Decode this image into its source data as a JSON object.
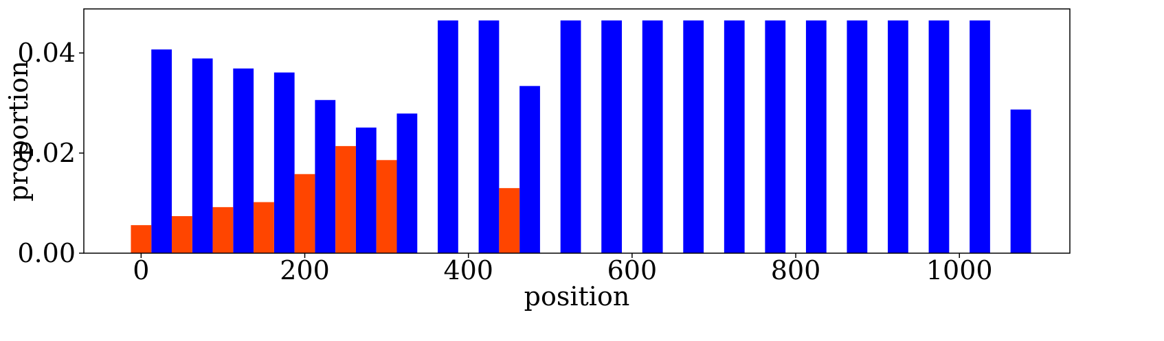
{
  "chart_data": {
    "type": "bar",
    "xlabel": "position",
    "ylabel": "proportion",
    "xlim": [
      -70,
      1135
    ],
    "ylim": [
      0,
      0.0488
    ],
    "bar_width": 25,
    "x_ticks": [
      0,
      200,
      400,
      600,
      800,
      1000
    ],
    "y_ticks": [
      0.0,
      0.02,
      0.04
    ],
    "x_tick_labels": [
      "0",
      "200",
      "400",
      "600",
      "800",
      "1000"
    ],
    "y_tick_labels": [
      "0.00",
      "0.02",
      "0.04"
    ],
    "grid": false,
    "legend": "none",
    "series": [
      {
        "color": "#0000ff",
        "x": [
          25,
          75,
          125,
          175,
          225,
          275,
          325,
          375,
          425,
          475,
          525,
          575,
          625,
          675,
          725,
          775,
          825,
          875,
          925,
          975,
          1025,
          1075
        ],
        "values": [
          0.0407,
          0.0389,
          0.0369,
          0.0361,
          0.0306,
          0.0251,
          0.0279,
          0.0465,
          0.0465,
          0.0334,
          0.0465,
          0.0465,
          0.0465,
          0.0465,
          0.0465,
          0.0465,
          0.0465,
          0.0465,
          0.0465,
          0.0465,
          0.0465,
          0.0287
        ]
      },
      {
        "color": "#ff4500",
        "x": [
          0,
          50,
          100,
          150,
          200,
          250,
          300,
          450
        ],
        "values": [
          0.0056,
          0.0074,
          0.0092,
          0.0102,
          0.0158,
          0.0214,
          0.0186,
          0.013
        ]
      }
    ]
  }
}
